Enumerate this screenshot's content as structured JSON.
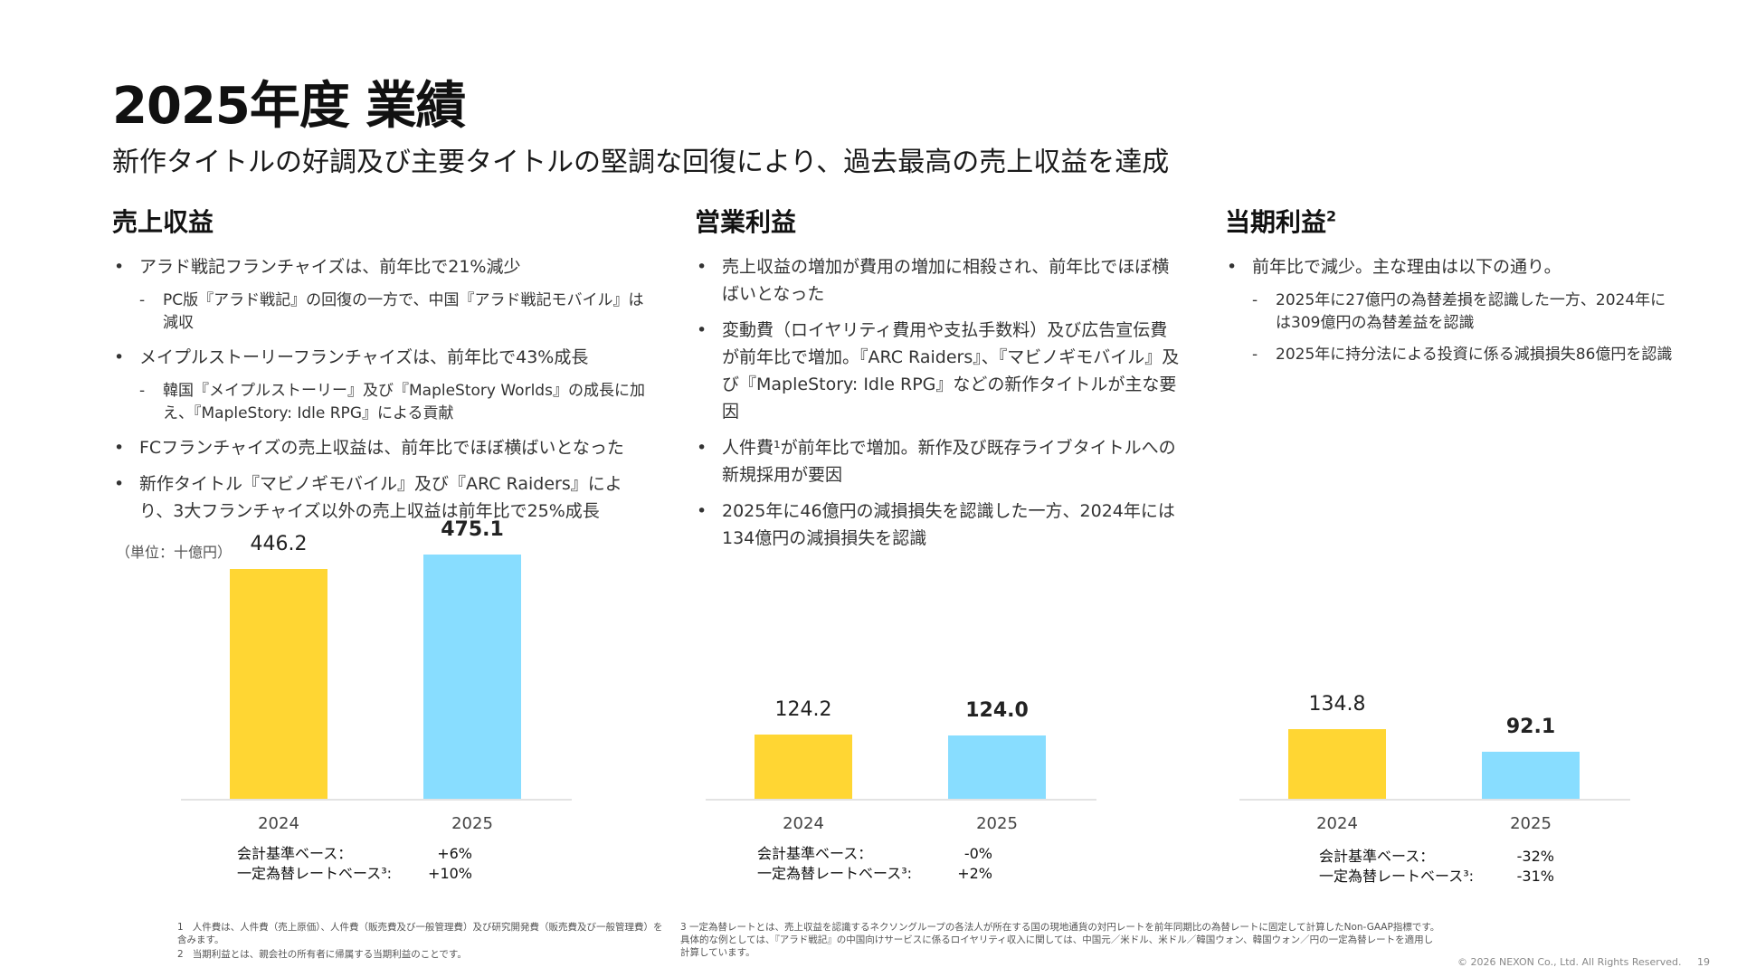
{
  "title": "2025年度 業績",
  "subtitle": "新作タイトルの好調及び主要タイトルの堅調な回復により、過去最高の売上収益を達成",
  "colors": {
    "bar_2024": "#FFD633",
    "bar_2025": "#88DDFF",
    "axis": "#E3E3E3"
  },
  "columns": [
    {
      "heading": "売上収益",
      "heading_sup": "",
      "bullets": [
        {
          "text": "アラド戦記フランチャイズは、前年比で21%減少",
          "subs": [
            "PC版『アラド戦記』の回復の一方で、中国『アラド戦記モバイル』は減収"
          ]
        },
        {
          "text": "メイプルストーリーフランチャイズは、前年比で43%成長",
          "subs": [
            "韓国『メイプルストーリー』及び『MapleStory Worlds』の成長に加え、『MapleStory: Idle RPG』による貢献"
          ]
        },
        {
          "text": "FCフランチャイズの売上収益は、前年比でほぼ横ばいとなった",
          "subs": []
        },
        {
          "text": "新作タイトル『マビノギモバイル』及び『ARC Raiders』により、3大フランチャイズ以外の売上収益は前年比で25%成長",
          "subs": []
        }
      ],
      "chart": {
        "unit": "（単位：十億円）",
        "years": [
          "2024",
          "2025"
        ],
        "values": [
          446.2,
          475.1
        ],
        "labels": [
          "446.2",
          "475.1"
        ]
      },
      "metrics": {
        "label1": "会計基準ベース：",
        "value1": "+6%",
        "label2": "一定為替レートベース³:",
        "value2": "+10%"
      }
    },
    {
      "heading": "営業利益",
      "heading_sup": "",
      "bullets": [
        {
          "text": "売上収益の増加が費用の増加に相殺され、前年比でほぼ横ばいとなった",
          "subs": []
        },
        {
          "text": "変動費（ロイヤリティ費用や支払手数料）及び広告宣伝費が前年比で増加。『ARC Raiders』、『マビノギモバイル』及び『MapleStory: Idle RPG』などの新作タイトルが主な要因",
          "subs": []
        },
        {
          "text": "人件費¹が前年比で増加。新作及び既存ライブタイトルへの新規採用が要因",
          "subs": []
        },
        {
          "text": "2025年に46億円の減損損失を認識した一方、2024年には134億円の減損損失を認識",
          "subs": []
        }
      ],
      "chart": {
        "unit": "",
        "years": [
          "2024",
          "2025"
        ],
        "values": [
          124.2,
          124.0
        ],
        "labels": [
          "124.2",
          "124.0"
        ]
      },
      "metrics": {
        "label1": "会計基準ベース：",
        "value1": "-0%",
        "label2": "一定為替レートベース³:",
        "value2": "+2%"
      }
    },
    {
      "heading": "当期利益",
      "heading_sup": "2",
      "bullets": [
        {
          "text": "前年比で減少。主な理由は以下の通り。",
          "subs": [
            "2025年に27億円の為替差損を認識した一方、2024年には309億円の為替差益を認識",
            "2025年に持分法による投資に係る減損損失86億円を認識"
          ]
        }
      ],
      "chart": {
        "unit": "",
        "years": [
          "2024",
          "2025"
        ],
        "values": [
          134.8,
          92.1
        ],
        "labels": [
          "134.8",
          "92.1"
        ]
      },
      "metrics": {
        "label1": "会計基準ベース：",
        "value1": "-32%",
        "label2": "一定為替レートベース³:",
        "value2": "-31%"
      }
    }
  ],
  "footnotes": [
    {
      "num": "1",
      "text": "人件費は、人件費（売上原価）、人件費（販売費及び一般管理費）及び研究開発費（販売費及び一般管理費）を含みます。"
    },
    {
      "num": "2",
      "text": "当期利益とは、親会社の所有者に帰属する当期利益のことです。"
    },
    {
      "num": "3",
      "text": "一定為替レートとは、売上収益を認識するネクソングループの各法人が所在する国の現地通貨の対円レートを前年同期比の為替レートに固定して計算したNon-GAAP指標です。具体的な例としては、『アラド戦記』の中国向けサービスに係るロイヤリティ収入に関しては、中国元／米ドル、米ドル／韓国ウォン、韓国ウォン／円の一定為替レートを適用し計算しています。"
    }
  ],
  "copyright": "© 2026 NEXON Co., Ltd. All Rights Reserved.",
  "page_number": "19"
}
